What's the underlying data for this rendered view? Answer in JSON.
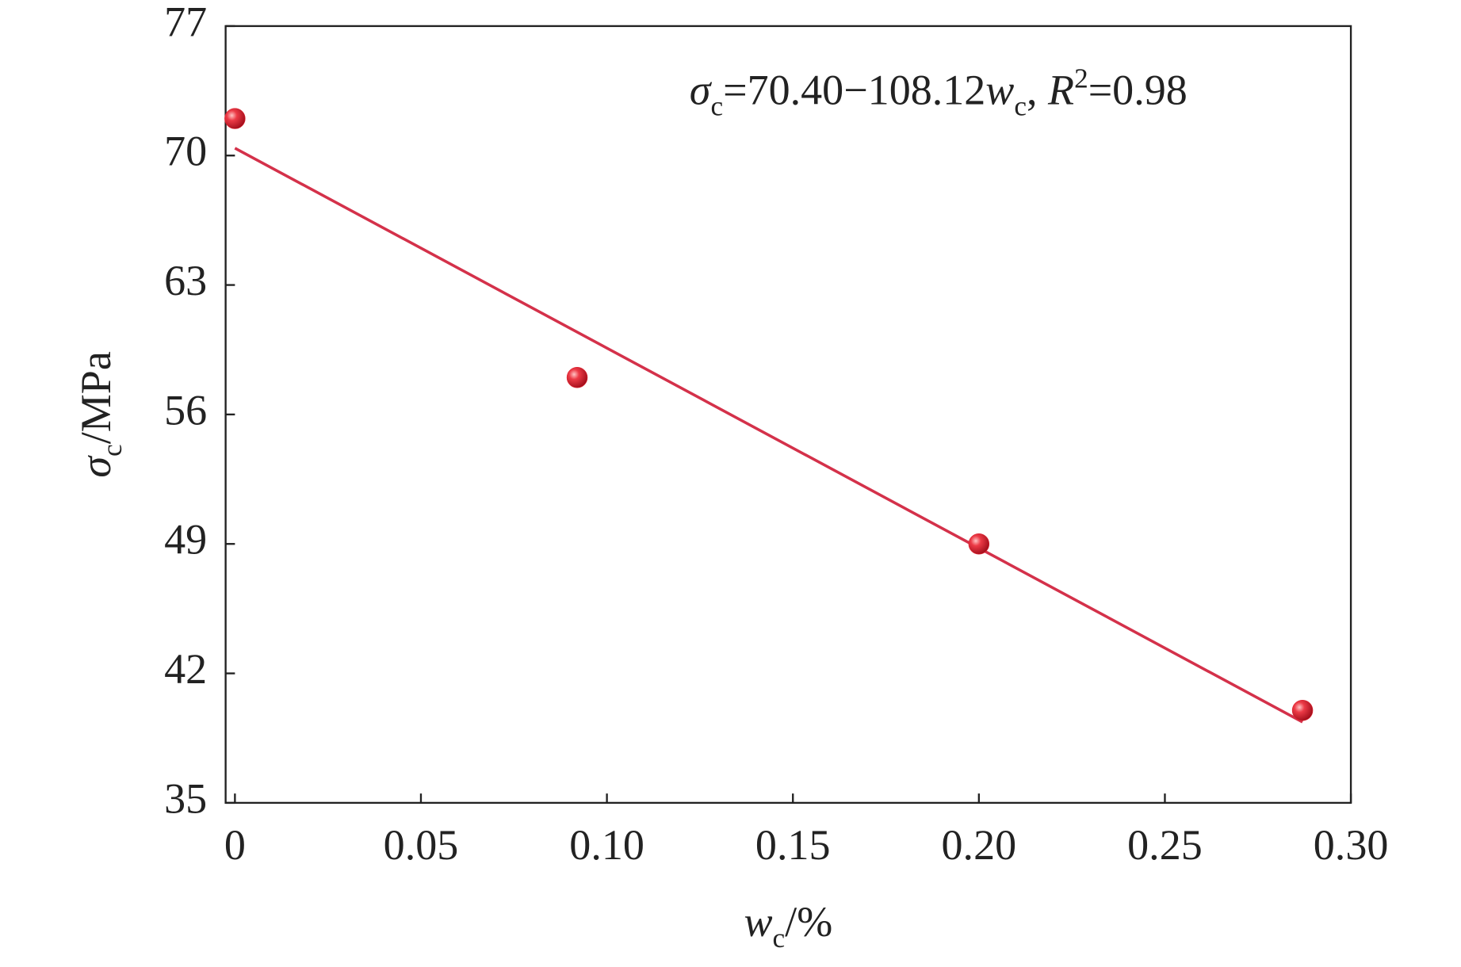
{
  "chart_data": {
    "type": "scatter",
    "annotation": [
      "σ",
      "c",
      "=70.40−108.12",
      "w",
      "c",
      ", ",
      "R",
      "2",
      "=0.98"
    ],
    "xlabel": [
      "w",
      "c",
      "/%"
    ],
    "ylabel": [
      "σ",
      "c",
      "/MPa"
    ],
    "xlim": [
      -0.0025,
      0.3
    ],
    "ylim": [
      35,
      77
    ],
    "xticks": [
      0,
      0.05,
      {
        "value": 0.1,
        "label": "0.10"
      },
      0.15,
      {
        "value": 0.2,
        "label": "0.20"
      },
      0.25,
      {
        "value": 0.3,
        "label": "0.30"
      }
    ],
    "yticks": [
      35,
      42,
      49,
      56,
      63,
      70,
      77
    ],
    "points": {
      "x": [
        0,
        0.092,
        0.2,
        0.287
      ],
      "values": [
        72,
        58,
        49,
        40
      ],
      "color": "#e0202e"
    },
    "fit_line": {
      "x": [
        0,
        0.287
      ],
      "values": [
        70.4,
        39.37
      ],
      "color": "#d4314a"
    }
  }
}
